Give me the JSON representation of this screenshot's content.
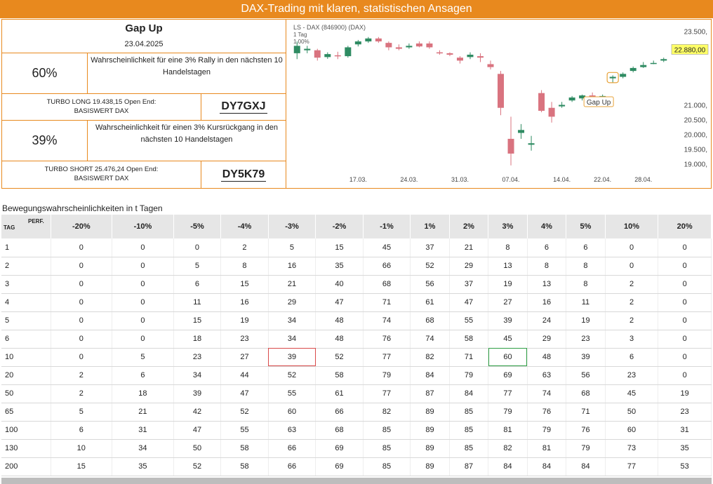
{
  "banner": {
    "title": "DAX-Trading mit klaren, statistischen Ansagen"
  },
  "info": {
    "title": "Gap Up",
    "date": "23.04.2025",
    "rally_pct": "60%",
    "rally_text": "Wahrscheinlichkeit für eine 3% Rally in den nächsten 10 Handelstagen",
    "long_desc_line1": "TURBO LONG 19.438,15 Open End:",
    "long_desc_line2": "BASISWERT DAX",
    "long_code": "DY7GXJ",
    "decline_pct": "39%",
    "decline_text": "Wahrscheinlichkeit für einen 3% Kursrückgang in den nächsten 10 Handelstagen",
    "short_desc_line1": "TURBO SHORT 25.476,24 Open End:",
    "short_desc_line2": "BASISWERT DAX",
    "short_code": "DY5K79"
  },
  "chart_data": {
    "type": "candlestick",
    "title": "LS - DAX (846900) (DAX)",
    "subtitle_line1": "1 Tag",
    "subtitle_line2": "1,00%",
    "current_price_label": "22.880,00",
    "annotation": "Gap Up",
    "y_ticks": [
      {
        "label": "23.500,",
        "value": 23500
      },
      {
        "label": "21.000,",
        "value": 21000
      },
      {
        "label": "20.500,",
        "value": 20500
      },
      {
        "label": "20.000,",
        "value": 20000
      },
      {
        "label": "19.500,",
        "value": 19500
      },
      {
        "label": "19.000,",
        "value": 19000
      }
    ],
    "x_ticks": [
      {
        "label": "17.03.",
        "index": 6
      },
      {
        "label": "24.03.",
        "index": 11
      },
      {
        "label": "31.03.",
        "index": 16
      },
      {
        "label": "07.04.",
        "index": 21
      },
      {
        "label": "14.04.",
        "index": 26
      },
      {
        "label": "22.04.",
        "index": 30
      },
      {
        "label": "28.04.",
        "index": 34
      }
    ],
    "ylim": [
      18850,
      23650
    ],
    "colors": {
      "up": "#2e8b62",
      "down": "#d9737f",
      "annotation": "#e8a33a",
      "price_label_bg": "#ffff66"
    },
    "candles": [
      {
        "o": 22750,
        "h": 23150,
        "l": 22550,
        "c": 23000
      },
      {
        "o": 22850,
        "h": 23000,
        "l": 22750,
        "c": 22900
      },
      {
        "o": 22850,
        "h": 22900,
        "l": 22500,
        "c": 22600
      },
      {
        "o": 22620,
        "h": 22780,
        "l": 22560,
        "c": 22720
      },
      {
        "o": 22680,
        "h": 22800,
        "l": 22550,
        "c": 22650
      },
      {
        "o": 22650,
        "h": 23000,
        "l": 22600,
        "c": 22950
      },
      {
        "o": 23050,
        "h": 23200,
        "l": 22980,
        "c": 23150
      },
      {
        "o": 23150,
        "h": 23300,
        "l": 23100,
        "c": 23250
      },
      {
        "o": 23250,
        "h": 23300,
        "l": 23100,
        "c": 23150
      },
      {
        "o": 23100,
        "h": 23150,
        "l": 22850,
        "c": 22950
      },
      {
        "o": 22950,
        "h": 23050,
        "l": 22850,
        "c": 22900
      },
      {
        "o": 22950,
        "h": 23080,
        "l": 22900,
        "c": 23000
      },
      {
        "o": 23080,
        "h": 23150,
        "l": 22950,
        "c": 22980
      },
      {
        "o": 23080,
        "h": 23150,
        "l": 22900,
        "c": 22950
      },
      {
        "o": 22780,
        "h": 22850,
        "l": 22700,
        "c": 22750
      },
      {
        "o": 22750,
        "h": 22780,
        "l": 22650,
        "c": 22700
      },
      {
        "o": 22600,
        "h": 22650,
        "l": 22400,
        "c": 22500
      },
      {
        "o": 22620,
        "h": 22780,
        "l": 22550,
        "c": 22700
      },
      {
        "o": 22650,
        "h": 22750,
        "l": 22450,
        "c": 22600
      },
      {
        "o": 22380,
        "h": 22500,
        "l": 22200,
        "c": 22280
      },
      {
        "o": 22050,
        "h": 22150,
        "l": 20650,
        "c": 20900
      },
      {
        "o": 19850,
        "h": 20600,
        "l": 18950,
        "c": 19350
      },
      {
        "o": 20050,
        "h": 20350,
        "l": 19850,
        "c": 20150
      },
      {
        "o": 19650,
        "h": 19950,
        "l": 19450,
        "c": 19700
      },
      {
        "o": 21400,
        "h": 21500,
        "l": 20750,
        "c": 20800
      },
      {
        "o": 20900,
        "h": 21100,
        "l": 20400,
        "c": 20600
      },
      {
        "o": 20950,
        "h": 21100,
        "l": 20900,
        "c": 21000
      },
      {
        "o": 21150,
        "h": 21300,
        "l": 21100,
        "c": 21250
      },
      {
        "o": 21220,
        "h": 21350,
        "l": 21150,
        "c": 21320
      },
      {
        "o": 21320,
        "h": 21420,
        "l": 21200,
        "c": 21280
      },
      {
        "o": 21300,
        "h": 21350,
        "l": 21250,
        "c": 21300
      },
      {
        "o": 21900,
        "h": 22000,
        "l": 21750,
        "c": 21950
      },
      {
        "o": 21950,
        "h": 22100,
        "l": 21900,
        "c": 22050
      },
      {
        "o": 22150,
        "h": 22300,
        "l": 22100,
        "c": 22250
      },
      {
        "o": 22280,
        "h": 22450,
        "l": 22250,
        "c": 22350
      },
      {
        "o": 22400,
        "h": 22500,
        "l": 22380,
        "c": 22420
      },
      {
        "o": 22500,
        "h": 22600,
        "l": 22450,
        "c": 22550
      }
    ]
  },
  "table": {
    "section_title": "Bewegungswahrscheinlichkeiten in t Tagen",
    "tag_label": "TAG",
    "perf_label": "PERF.",
    "columns": [
      "-20%",
      "-10%",
      "-5%",
      "-4%",
      "-3%",
      "-2%",
      "-1%",
      "1%",
      "2%",
      "3%",
      "4%",
      "5%",
      "10%",
      "20%"
    ],
    "rows": [
      {
        "tag": "1",
        "values": [
          "0",
          "0",
          "0",
          "2",
          "5",
          "15",
          "45",
          "37",
          "21",
          "8",
          "6",
          "6",
          "0",
          "0"
        ]
      },
      {
        "tag": "2",
        "values": [
          "0",
          "0",
          "5",
          "8",
          "16",
          "35",
          "66",
          "52",
          "29",
          "13",
          "8",
          "8",
          "0",
          "0"
        ]
      },
      {
        "tag": "3",
        "values": [
          "0",
          "0",
          "6",
          "15",
          "21",
          "40",
          "68",
          "56",
          "37",
          "19",
          "13",
          "8",
          "2",
          "0"
        ]
      },
      {
        "tag": "4",
        "values": [
          "0",
          "0",
          "11",
          "16",
          "29",
          "47",
          "71",
          "61",
          "47",
          "27",
          "16",
          "11",
          "2",
          "0"
        ]
      },
      {
        "tag": "5",
        "values": [
          "0",
          "0",
          "15",
          "19",
          "34",
          "48",
          "74",
          "68",
          "55",
          "39",
          "24",
          "19",
          "2",
          "0"
        ]
      },
      {
        "tag": "6",
        "values": [
          "0",
          "0",
          "18",
          "23",
          "34",
          "48",
          "76",
          "74",
          "58",
          "45",
          "29",
          "23",
          "3",
          "0"
        ]
      },
      {
        "tag": "10",
        "values": [
          "0",
          "5",
          "23",
          "27",
          "39",
          "52",
          "77",
          "82",
          "71",
          "60",
          "48",
          "39",
          "6",
          "0"
        ]
      },
      {
        "tag": "20",
        "values": [
          "2",
          "6",
          "34",
          "44",
          "52",
          "58",
          "79",
          "84",
          "79",
          "69",
          "63",
          "56",
          "23",
          "0"
        ]
      },
      {
        "tag": "50",
        "values": [
          "2",
          "18",
          "39",
          "47",
          "55",
          "61",
          "77",
          "87",
          "84",
          "77",
          "74",
          "68",
          "45",
          "19"
        ]
      },
      {
        "tag": "65",
        "values": [
          "5",
          "21",
          "42",
          "52",
          "60",
          "66",
          "82",
          "89",
          "85",
          "79",
          "76",
          "71",
          "50",
          "23"
        ]
      },
      {
        "tag": "100",
        "values": [
          "6",
          "31",
          "47",
          "55",
          "63",
          "68",
          "85",
          "89",
          "85",
          "81",
          "79",
          "76",
          "60",
          "31"
        ]
      },
      {
        "tag": "130",
        "values": [
          "10",
          "34",
          "50",
          "58",
          "66",
          "69",
          "85",
          "89",
          "85",
          "82",
          "81",
          "79",
          "73",
          "35"
        ]
      },
      {
        "tag": "200",
        "values": [
          "15",
          "35",
          "52",
          "58",
          "66",
          "69",
          "85",
          "89",
          "87",
          "84",
          "84",
          "84",
          "77",
          "53"
        ]
      }
    ],
    "highlights": {
      "red": {
        "row": 6,
        "col": 4
      },
      "green": {
        "row": 6,
        "col": 9
      }
    }
  }
}
